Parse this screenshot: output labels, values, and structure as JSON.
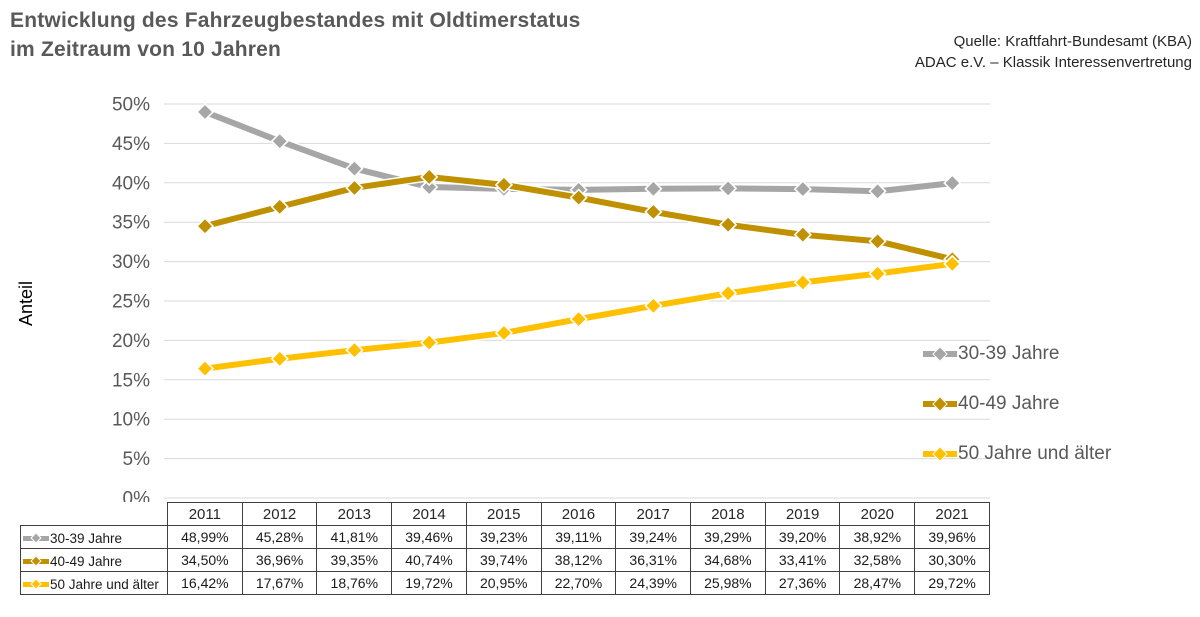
{
  "header": {
    "title_line1": "Entwicklung des Fahrzeugbestandes mit Oldtimerstatus",
    "title_line2": "im Zeitraum von 10 Jahren",
    "source_line1": "Quelle: Kraftfahrt-Bundesamt (KBA)",
    "source_line2": "ADAC e.V. – Klassik Interessenvertretung"
  },
  "colors": {
    "title_text": "#595959",
    "axis_text": "#595959",
    "gridline": "#D9D9D9",
    "table_border": "#404040",
    "series_gray": "#A6A6A6",
    "series_dark_gold": "#BF9000",
    "series_yellow": "#FFC000"
  },
  "chart_data": {
    "type": "line",
    "title": "Entwicklung des Fahrzeugbestandes mit Oldtimerstatus im Zeitraum von 10 Jahren",
    "x": [
      "2011",
      "2012",
      "2013",
      "2014",
      "2015",
      "2016",
      "2017",
      "2018",
      "2019",
      "2020",
      "2021"
    ],
    "ylabel": "Anteil",
    "xlabel": "",
    "ylim": [
      0,
      50
    ],
    "ytick_step": 5,
    "ytick_suffix": "%",
    "grid": true,
    "legend_position": "right",
    "marker": "diamond",
    "series": [
      {
        "name": "30-39 Jahre",
        "color": "#A6A6A6",
        "values": [
          48.99,
          45.28,
          41.81,
          39.46,
          39.23,
          39.11,
          39.24,
          39.29,
          39.2,
          38.92,
          39.96
        ],
        "formatted": [
          "48,99%",
          "45,28%",
          "41,81%",
          "39,46%",
          "39,23%",
          "39,11%",
          "39,24%",
          "39,29%",
          "39,20%",
          "38,92%",
          "39,96%"
        ]
      },
      {
        "name": "40-49 Jahre",
        "color": "#BF9000",
        "values": [
          34.5,
          36.96,
          39.35,
          40.74,
          39.74,
          38.12,
          36.31,
          34.68,
          33.41,
          32.58,
          30.3
        ],
        "formatted": [
          "34,50%",
          "36,96%",
          "39,35%",
          "40,74%",
          "39,74%",
          "38,12%",
          "36,31%",
          "34,68%",
          "33,41%",
          "32,58%",
          "30,30%"
        ]
      },
      {
        "name": "50 Jahre und älter",
        "color": "#FFC000",
        "values": [
          16.42,
          17.67,
          18.76,
          19.72,
          20.95,
          22.7,
          24.39,
          25.98,
          27.36,
          28.47,
          29.72
        ],
        "formatted": [
          "16,42%",
          "17,67%",
          "18,76%",
          "19,72%",
          "20,95%",
          "22,70%",
          "24,39%",
          "25,98%",
          "27,36%",
          "28,47%",
          "29,72%"
        ]
      }
    ]
  }
}
